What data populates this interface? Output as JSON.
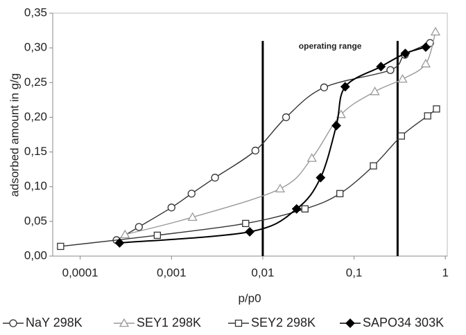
{
  "chart_data": {
    "type": "line",
    "x_axis_label": "p/p0",
    "y_axis_label": "adsorbed amount in g/g",
    "xscale": "log",
    "xlim": [
      5e-05,
      1.05
    ],
    "ylim": [
      0,
      0.35
    ],
    "xticks": [
      {
        "value": 0.0001,
        "label": "0,0001"
      },
      {
        "value": 0.001,
        "label": "0,001"
      },
      {
        "value": 0.01,
        "label": "0,01"
      },
      {
        "value": 0.1,
        "label": "0,1"
      },
      1
    ],
    "yticks": [
      {
        "value": 0,
        "label": "0,00"
      },
      {
        "value": 0.05,
        "label": "0,05"
      },
      {
        "value": 0.1,
        "label": "0,10"
      },
      {
        "value": 0.15,
        "label": "0,15"
      },
      {
        "value": 0.2,
        "label": "0,20"
      },
      {
        "value": 0.25,
        "label": "0,25"
      },
      {
        "value": 0.3,
        "label": "0,30"
      },
      {
        "value": 0.35,
        "label": "0,35"
      }
    ],
    "grid": false,
    "legend": "bottom",
    "annotation": "operating range",
    "range_lines": [
      0.01,
      0.3
    ],
    "range_line_top": 0.31,
    "series": [
      {
        "name": "NaY 298K",
        "color": "#333333",
        "marker": "circle",
        "marker_fill": "#ffffff",
        "x": [
          0.00025,
          0.00044,
          0.001,
          0.00166,
          0.003,
          0.0083,
          0.018,
          0.047,
          0.25,
          0.36,
          0.68
        ],
        "values": [
          0.023,
          0.042,
          0.07,
          0.09,
          0.113,
          0.152,
          0.2,
          0.243,
          0.268,
          0.29,
          0.307
        ]
      },
      {
        "name": "SEY1 298K",
        "color": "#999999",
        "marker": "triangle",
        "marker_fill": "#ffffff",
        "x": [
          0.00031,
          0.0017,
          0.0155,
          0.0345,
          0.072,
          0.169,
          0.34,
          0.61,
          0.78
        ],
        "values": [
          0.031,
          0.056,
          0.097,
          0.141,
          0.204,
          0.237,
          0.255,
          0.277,
          0.323
        ]
      },
      {
        "name": "SEY2 298K",
        "color": "#333333",
        "marker": "square",
        "marker_fill": "#ffffff",
        "x": [
          6.1e-05,
          0.0007,
          0.0065,
          0.029,
          0.07,
          0.163,
          0.33,
          0.64,
          0.8
        ],
        "values": [
          0.014,
          0.03,
          0.047,
          0.068,
          0.09,
          0.13,
          0.173,
          0.202,
          0.212
        ]
      },
      {
        "name": "SAPO34 303K",
        "color": "#000000",
        "marker": "diamond",
        "marker_fill": "#000000",
        "x": [
          0.00027,
          0.0072,
          0.0235,
          0.043,
          0.064,
          0.08,
          0.197,
          0.364,
          0.61
        ],
        "values": [
          0.019,
          0.035,
          0.068,
          0.113,
          0.188,
          0.244,
          0.273,
          0.292,
          0.301
        ]
      }
    ]
  }
}
